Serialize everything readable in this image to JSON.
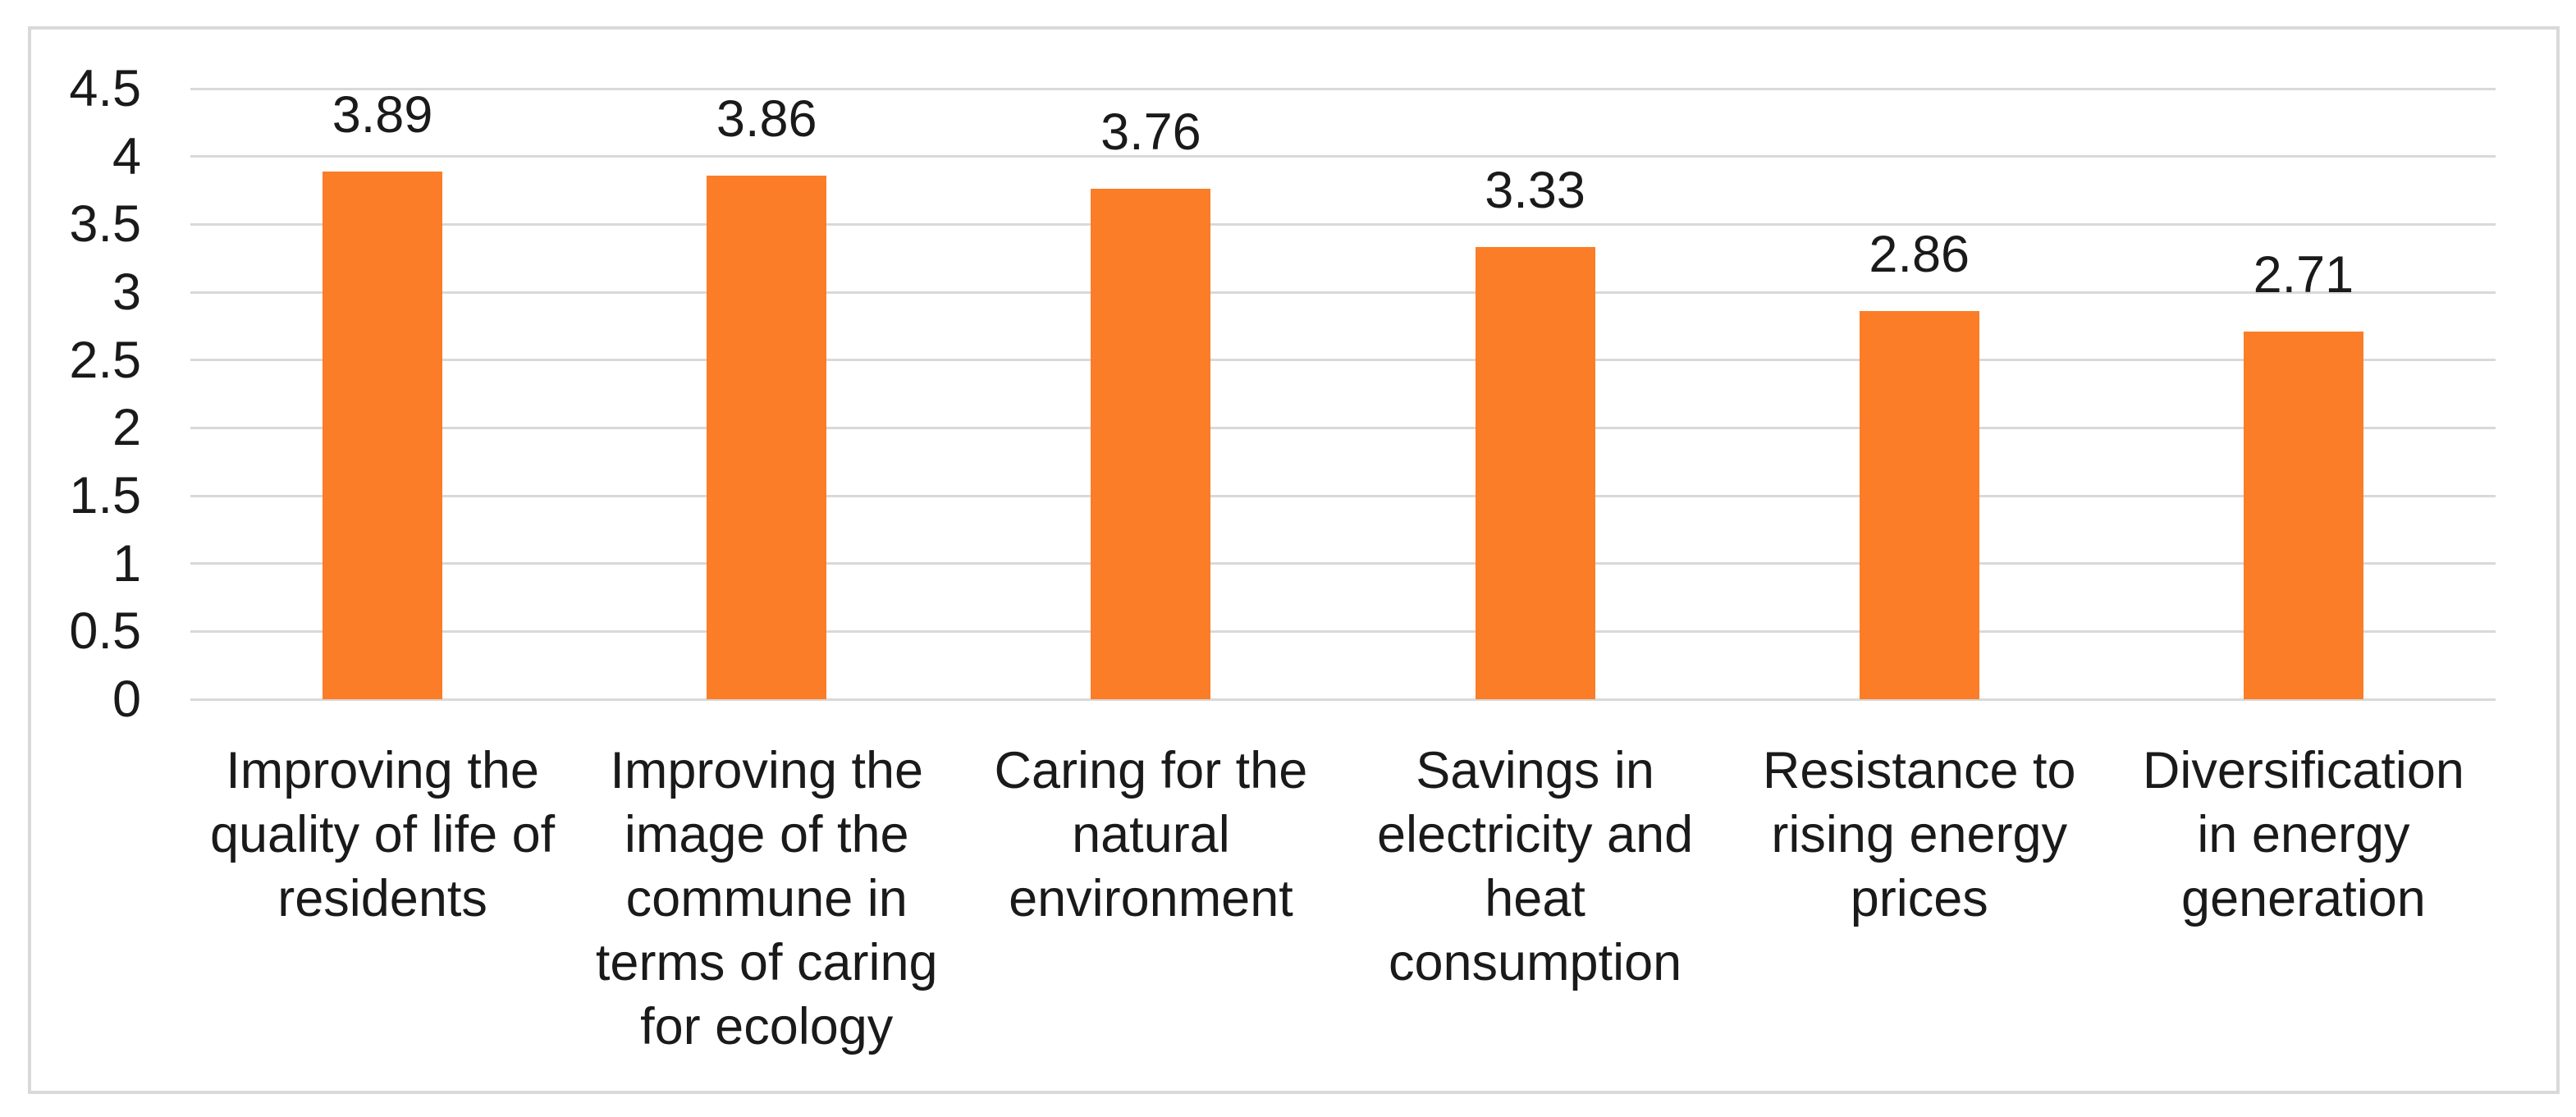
{
  "chart_data": {
    "type": "bar",
    "title": "",
    "xlabel": "",
    "ylabel": "",
    "categories": [
      "Improving the quality of life of residents",
      "Improving the image of the commune in terms of caring for ecology",
      "Caring for the natural environment",
      "Savings in electricity and heat consumption",
      "Resistance to rising energy prices",
      "Diversification in energy generation"
    ],
    "values": [
      3.89,
      3.86,
      3.76,
      3.33,
      2.86,
      2.71
    ],
    "value_labels": [
      "3.89",
      "3.86",
      "3.76",
      "3.33",
      "2.86",
      "2.71"
    ],
    "ylim": [
      0,
      4.5
    ],
    "ytick_labels": [
      "4.5",
      "4",
      "3.5",
      "3",
      "2.5",
      "2",
      "1.5",
      "1",
      "0.5",
      "0"
    ],
    "grid": "horizontal-on",
    "legend": "none",
    "colors": {
      "bar": "#FB7D27",
      "gridline": "#D9D9D9",
      "frame_border": "#D9D9D9",
      "text": "#1A1A1A",
      "background": "#FFFFFF"
    }
  }
}
